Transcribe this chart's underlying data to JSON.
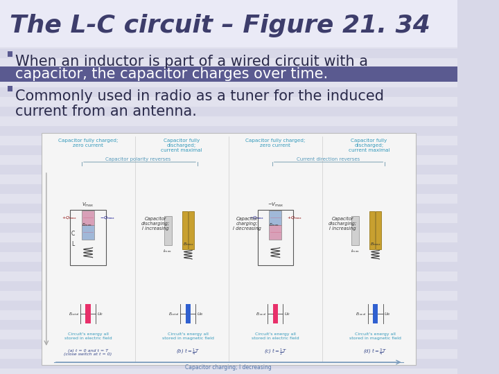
{
  "title": "The L-C circuit – Figure 21. 34",
  "title_color": "#3d3d6b",
  "title_fontsize": 26,
  "title_fontweight": "bold",
  "title_fontstyle": "italic",
  "bg_stripe_color": "#d8d8e8",
  "bg_stripe_light": "#e2e2ee",
  "title_bg": "#e8e8f4",
  "highlight_strip_color": "#5a5a90",
  "bullet_marker_color": "#5a5a90",
  "text_color": "#2a2a4a",
  "text_color_white": "#ffffff",
  "bullet_fontsize": 15,
  "bullet1_line1": "When an inductor is part of a wired circuit with a",
  "bullet1_line2": "capacitor, the capacitor charges over time.",
  "bullet2_line1": "Commonly used in radio as a tuner for the induced",
  "bullet2_line2": "current from an antenna.",
  "diagram_bg": "#f0f0f0",
  "diagram_border": "#bbbbbb",
  "gold_color": "#c8a030",
  "pink_color": "#e8306a",
  "blue_color": "#3060d0",
  "cap_pink": "#d8a0b8",
  "cap_blue": "#a0b8d8",
  "label_color": "#3355aa",
  "label_color2": "#3399bb",
  "arrow_color": "#7799bb"
}
